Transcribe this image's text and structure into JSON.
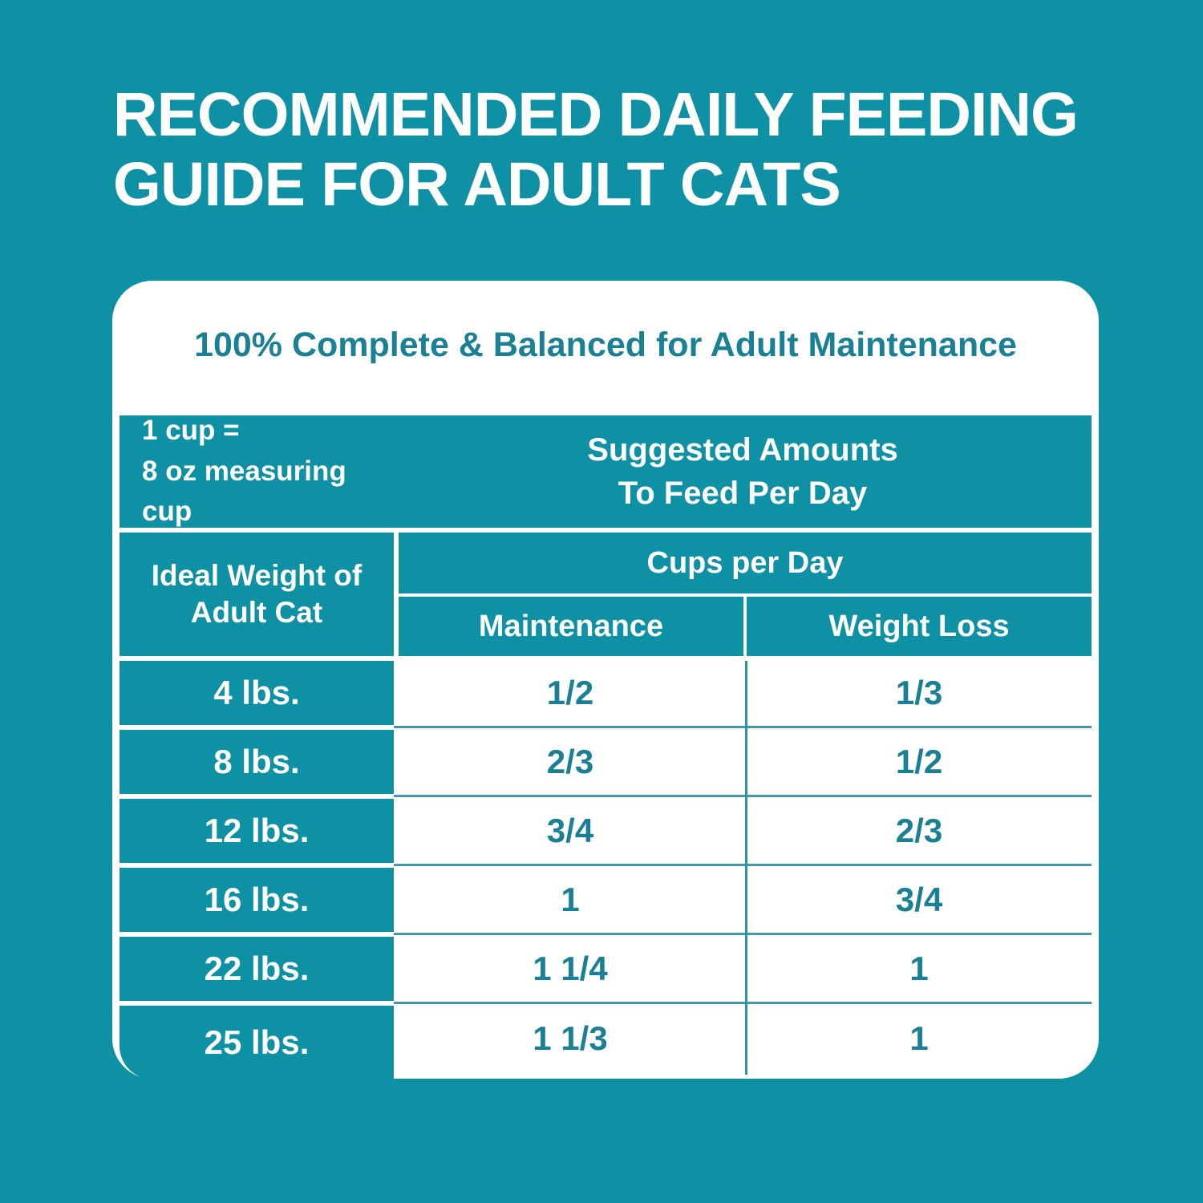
{
  "title": {
    "lines": [
      "RECOMMENDED DAILY FEEDING",
      "GUIDE FOR ADULT CATS"
    ]
  },
  "card": {
    "headline": "100% Complete & Balanced for Adult Maintenance",
    "cup_note": {
      "lines": [
        "1 cup =",
        "8 oz measuring cup"
      ]
    },
    "suggested": {
      "lines": [
        "Suggested Amounts",
        "To Feed Per Day"
      ]
    },
    "headers": {
      "weight_column": "Ideal Weight of Adult Cat",
      "cups_group": "Cups per Day",
      "maintenance": "Maintenance",
      "weight_loss": "Weight Loss"
    },
    "rows": [
      {
        "weight": "4 lbs.",
        "maintenance": "1/2",
        "weight_loss": "1/3"
      },
      {
        "weight": "8 lbs.",
        "maintenance": "2/3",
        "weight_loss": "1/2"
      },
      {
        "weight": "12 lbs.",
        "maintenance": "3/4",
        "weight_loss": "2/3"
      },
      {
        "weight": "16 lbs.",
        "maintenance": "1",
        "weight_loss": "3/4"
      },
      {
        "weight": "22 lbs.",
        "maintenance": "1 1/4",
        "weight_loss": "1"
      },
      {
        "weight": "25 lbs.",
        "maintenance": "1 1/3",
        "weight_loss": "1"
      }
    ]
  },
  "colors": {
    "background_teal": "#0e91a4",
    "text_teal": "#1a8095",
    "divider_teal": "#4697a9",
    "card_background": "#ffffff",
    "title_text": "#ffffff"
  }
}
